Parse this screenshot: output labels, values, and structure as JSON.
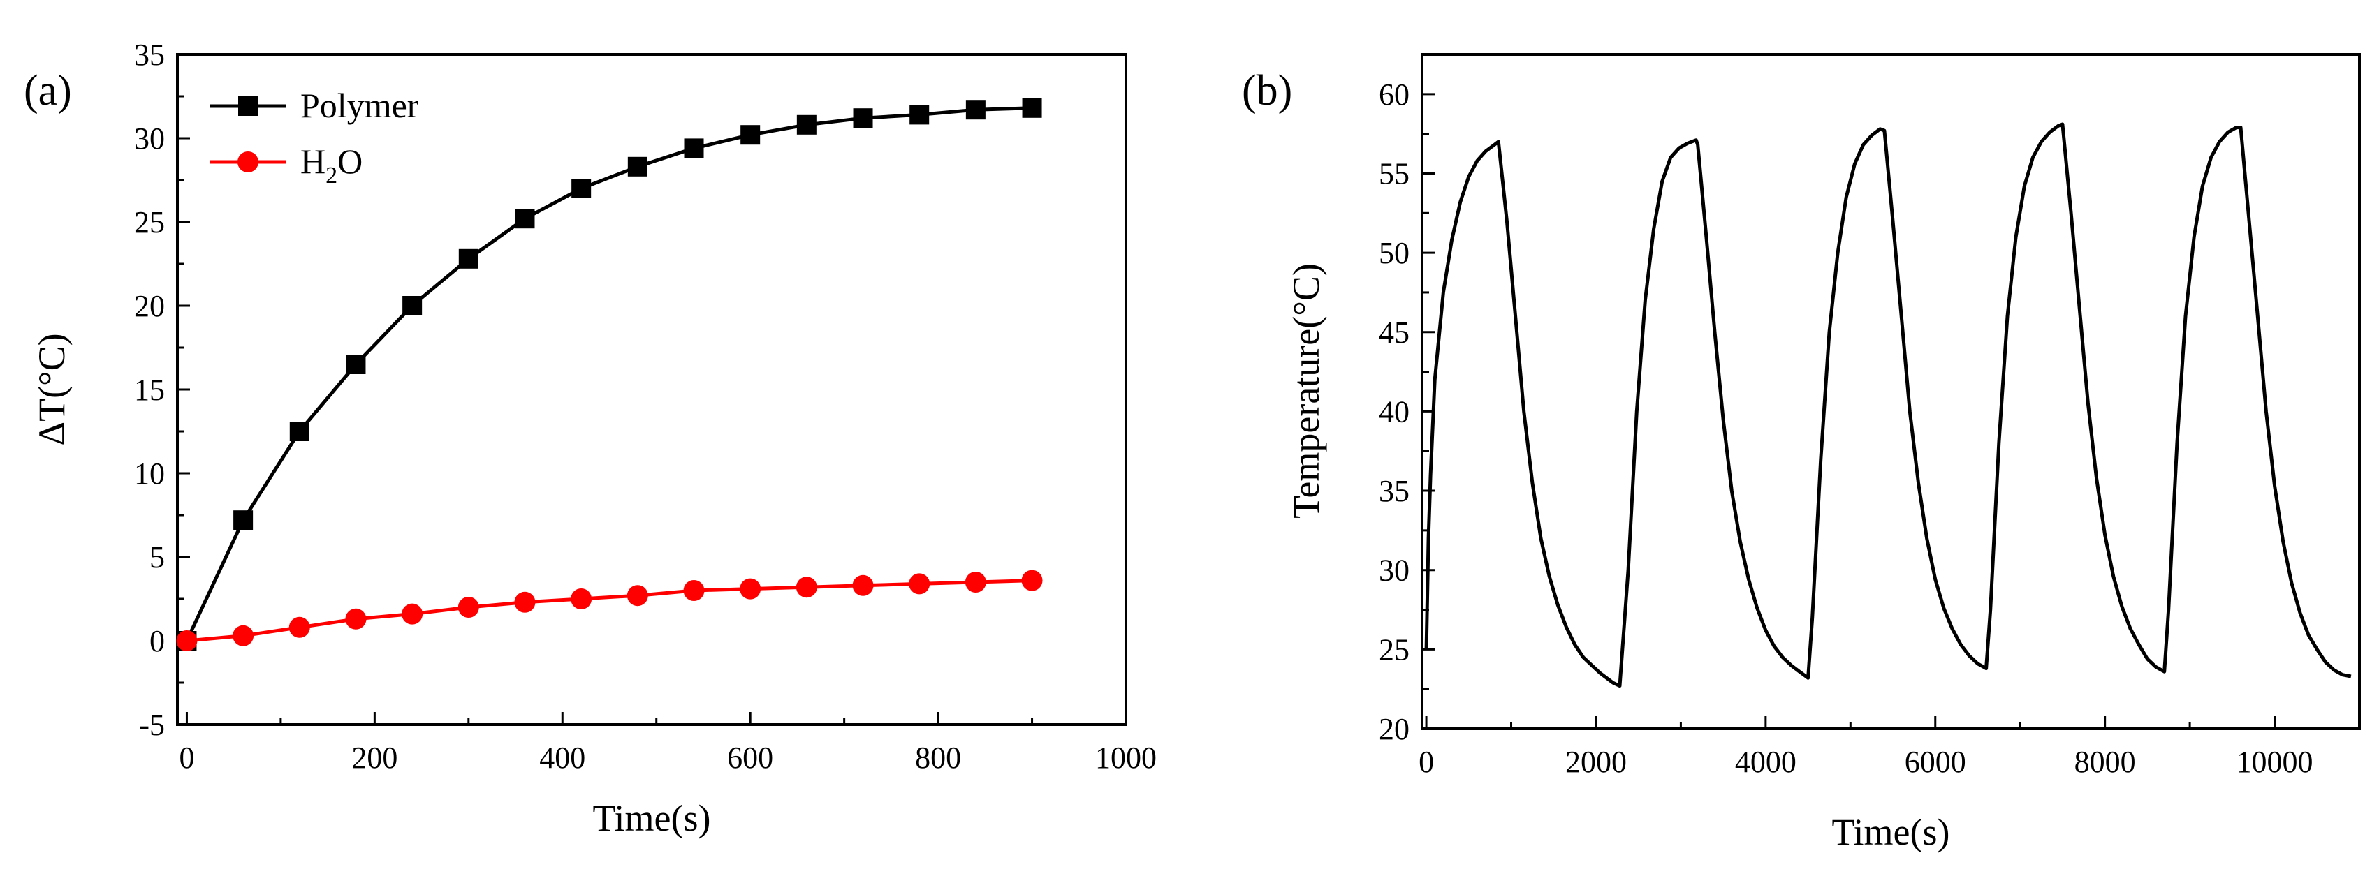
{
  "chart_data": [
    {
      "panel": "(a)",
      "type": "line",
      "xlabel": "Time(s)",
      "ylabel": "ΔT(°C)",
      "xlim": [
        -10,
        1000
      ],
      "ylim": [
        -5,
        35
      ],
      "xticks": [
        0,
        200,
        400,
        600,
        800,
        1000
      ],
      "yticks": [
        -5,
        0,
        5,
        10,
        15,
        20,
        25,
        30,
        35
      ],
      "legend_position": "top-left",
      "series": [
        {
          "name": "Polymer",
          "legend_main": "Polymer",
          "legend_sub": "",
          "legend_tail": "",
          "color": "#000000",
          "marker": "square",
          "x": [
            0,
            60,
            120,
            180,
            240,
            300,
            360,
            420,
            480,
            540,
            600,
            660,
            720,
            780,
            840,
            900
          ],
          "y": [
            0,
            7.2,
            12.5,
            16.5,
            20.0,
            22.8,
            25.2,
            27.0,
            28.3,
            29.4,
            30.2,
            30.8,
            31.2,
            31.4,
            31.7,
            31.8
          ]
        },
        {
          "name": "H2O",
          "legend_main": "H",
          "legend_sub": "2",
          "legend_tail": "O",
          "color": "#ff0000",
          "marker": "circle",
          "x": [
            0,
            60,
            120,
            180,
            240,
            300,
            360,
            420,
            480,
            540,
            600,
            660,
            720,
            780,
            840,
            900
          ],
          "y": [
            0,
            0.3,
            0.8,
            1.3,
            1.6,
            2.0,
            2.3,
            2.5,
            2.7,
            3.0,
            3.1,
            3.2,
            3.3,
            3.4,
            3.5,
            3.6
          ]
        }
      ]
    },
    {
      "panel": "(b)",
      "type": "line",
      "xlabel": "Time(s)",
      "ylabel": "Temperature(°C)",
      "xlim": [
        -50,
        11000
      ],
      "ylim": [
        20,
        62.5
      ],
      "xticks": [
        0,
        2000,
        4000,
        6000,
        8000,
        10000
      ],
      "yticks": [
        20,
        25,
        30,
        35,
        40,
        45,
        50,
        55,
        60
      ],
      "series": [
        {
          "name": "Temperature",
          "color": "#000000",
          "marker": "none",
          "x": [
            0,
            25,
            50,
            100,
            200,
            300,
            400,
            500,
            600,
            700,
            800,
            850,
            950,
            1050,
            1150,
            1250,
            1350,
            1450,
            1550,
            1650,
            1750,
            1850,
            1950,
            2050,
            2200,
            2280,
            2380,
            2480,
            2580,
            2680,
            2780,
            2880,
            2980,
            3080,
            3180,
            3200,
            3300,
            3400,
            3500,
            3600,
            3700,
            3800,
            3900,
            4000,
            4100,
            4200,
            4300,
            4400,
            4500,
            4550,
            4650,
            4750,
            4850,
            4950,
            5050,
            5150,
            5250,
            5350,
            5400,
            5500,
            5600,
            5700,
            5800,
            5900,
            6000,
            6100,
            6200,
            6300,
            6400,
            6500,
            6600,
            6650,
            6750,
            6850,
            6950,
            7050,
            7150,
            7250,
            7350,
            7450,
            7500,
            7600,
            7700,
            7800,
            7900,
            8000,
            8100,
            8200,
            8300,
            8400,
            8500,
            8600,
            8700,
            8750,
            8850,
            8950,
            9050,
            9150,
            9250,
            9350,
            9450,
            9550,
            9600,
            9700,
            9800,
            9900,
            10000,
            10100,
            10200,
            10300,
            10400,
            10500,
            10600,
            10700,
            10800,
            10900
          ],
          "y": [
            25.0,
            32.0,
            36.0,
            42.0,
            47.5,
            50.8,
            53.2,
            54.8,
            55.8,
            56.4,
            56.8,
            57.0,
            52.0,
            46.0,
            40.0,
            35.5,
            32.0,
            29.6,
            27.8,
            26.4,
            25.3,
            24.5,
            24.0,
            23.5,
            22.9,
            22.7,
            30.0,
            40.0,
            47.0,
            51.5,
            54.5,
            56.0,
            56.6,
            56.9,
            57.1,
            56.8,
            51.0,
            45.0,
            39.5,
            35.0,
            31.8,
            29.4,
            27.6,
            26.2,
            25.2,
            24.5,
            24.0,
            23.6,
            23.2,
            27.0,
            37.0,
            45.0,
            50.0,
            53.5,
            55.6,
            56.8,
            57.4,
            57.8,
            57.7,
            52.0,
            46.0,
            40.0,
            35.5,
            32.0,
            29.4,
            27.6,
            26.3,
            25.3,
            24.6,
            24.1,
            23.8,
            27.5,
            38.0,
            46.0,
            51.0,
            54.2,
            56.0,
            57.0,
            57.6,
            58.0,
            58.1,
            52.5,
            46.5,
            40.5,
            35.8,
            32.2,
            29.6,
            27.7,
            26.3,
            25.3,
            24.4,
            23.9,
            23.6,
            27.5,
            38.0,
            46.0,
            51.0,
            54.2,
            56.0,
            57.0,
            57.6,
            57.9,
            57.9,
            52.0,
            46.0,
            40.0,
            35.3,
            31.8,
            29.2,
            27.3,
            25.9,
            25.0,
            24.2,
            23.7,
            23.4,
            23.3
          ]
        }
      ]
    }
  ]
}
